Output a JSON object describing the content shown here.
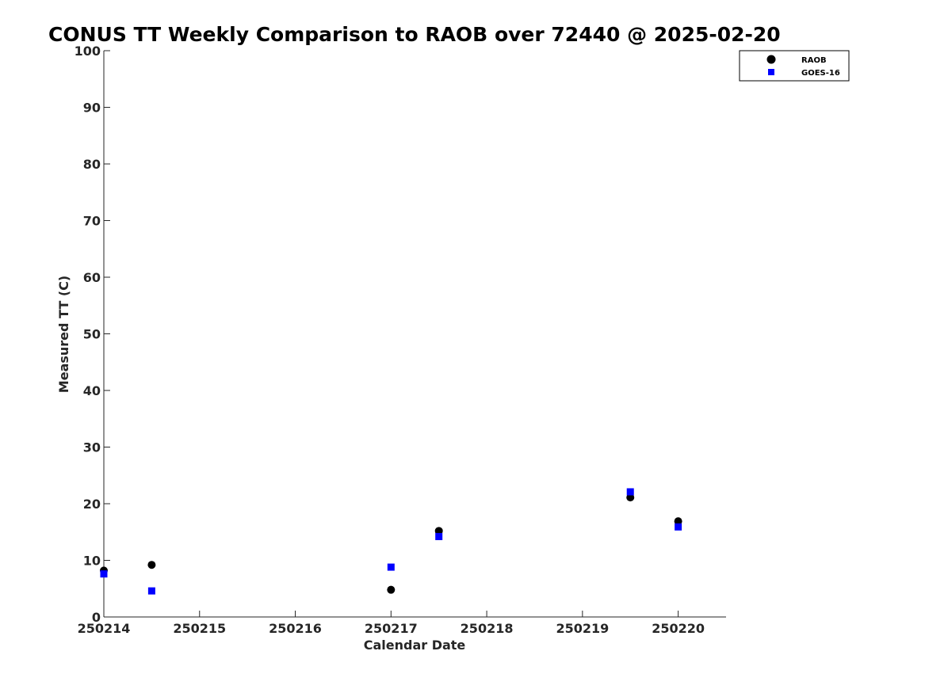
{
  "chart_data": {
    "type": "scatter",
    "title": "CONUS TT Weekly Comparison to RAOB over 72440 @ 2025-02-20",
    "xlabel": "Calendar Date",
    "ylabel": "Measured TT (C)",
    "x_ticks": [
      "250214",
      "250215",
      "250216",
      "250217",
      "250218",
      "250219",
      "250220"
    ],
    "xlim": [
      0,
      6.5
    ],
    "ylim": [
      0,
      100
    ],
    "y_ticks": [
      0,
      10,
      20,
      30,
      40,
      50,
      60,
      70,
      80,
      90,
      100
    ],
    "grid": false,
    "legend_position": "top-right",
    "series": [
      {
        "name": "RAOB",
        "marker": "circle",
        "color": "#000000",
        "points": [
          [
            0,
            8.2
          ],
          [
            0.5,
            9.2
          ],
          [
            3,
            4.8
          ],
          [
            3.5,
            15.2
          ],
          [
            5.5,
            21.1
          ],
          [
            6,
            16.9
          ]
        ]
      },
      {
        "name": "GOES-16",
        "marker": "square",
        "color": "#0000ff",
        "points": [
          [
            0,
            7.6
          ],
          [
            0.5,
            4.6
          ],
          [
            3,
            8.8
          ],
          [
            3.5,
            14.2
          ],
          [
            5.5,
            22.1
          ],
          [
            6,
            15.9
          ]
        ]
      }
    ]
  }
}
